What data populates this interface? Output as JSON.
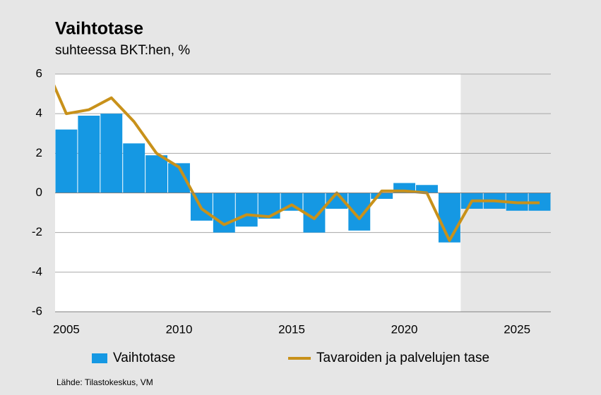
{
  "chart_data": {
    "type": "bar_line",
    "title": "Vaihtotase",
    "subtitle": "suhteessa BKT:hen, %",
    "source": "Lähde: Tilastokeskus, VM",
    "xlim": [
      2004.5,
      2026.5
    ],
    "xticks": [
      2005,
      2010,
      2015,
      2020,
      2025
    ],
    "ylim": [
      -6,
      6
    ],
    "yticks": [
      -6,
      -4,
      -2,
      0,
      2,
      4,
      6
    ],
    "grid": true,
    "shaded_from": 2022.5,
    "series": [
      {
        "name": "Vaihtotase",
        "type": "bar",
        "color": "#1598e3",
        "x": [
          2005,
          2006,
          2007,
          2008,
          2009,
          2010,
          2011,
          2012,
          2013,
          2014,
          2015,
          2016,
          2017,
          2018,
          2019,
          2020,
          2021,
          2022,
          2023,
          2024,
          2025,
          2026
        ],
        "values": [
          3.2,
          3.9,
          4.0,
          2.5,
          1.9,
          1.5,
          -1.4,
          -2.0,
          -1.7,
          -1.3,
          -0.9,
          -2.0,
          -0.8,
          -1.9,
          -0.3,
          0.5,
          0.4,
          -2.5,
          -0.8,
          -0.8,
          -0.9,
          -0.9
        ]
      },
      {
        "name": "Tavaroiden ja palvelujen tase",
        "type": "line",
        "color": "#c8911a",
        "x": [
          2004,
          2005,
          2006,
          2007,
          2008,
          2009,
          2010,
          2011,
          2012,
          2013,
          2014,
          2015,
          2016,
          2017,
          2018,
          2019,
          2020,
          2021,
          2022,
          2023,
          2024,
          2025,
          2026
        ],
        "values": [
          6.6,
          4.0,
          4.2,
          4.8,
          3.6,
          2.0,
          1.3,
          -0.8,
          -1.6,
          -1.1,
          -1.2,
          -0.6,
          -1.3,
          0.0,
          -1.3,
          0.1,
          0.1,
          0.0,
          -2.4,
          -0.4,
          -0.4,
          -0.5,
          -0.5
        ]
      }
    ]
  }
}
